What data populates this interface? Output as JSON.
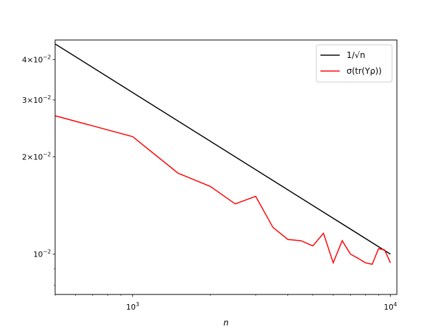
{
  "chart_data": {
    "type": "line",
    "title": "",
    "xlabel": "n",
    "ylabel": "",
    "xscale": "log",
    "yscale": "log",
    "xlim": [
      500,
      10600
    ],
    "ylim": [
      0.0075,
      0.046
    ],
    "grid": false,
    "legend_position": "top-right",
    "x_major_ticks": [
      {
        "value": 1000,
        "base": "10",
        "exp": "3"
      },
      {
        "value": 10000,
        "base": "10",
        "exp": "4"
      }
    ],
    "y_major_ticks": [
      {
        "value": 0.01,
        "base": "10",
        "exp": "−2",
        "coef": ""
      },
      {
        "value": 0.02,
        "base": "10",
        "exp": "−2",
        "coef": "2×"
      },
      {
        "value": 0.03,
        "base": "10",
        "exp": "−2",
        "coef": "3×"
      },
      {
        "value": 0.04,
        "base": "10",
        "exp": "−2",
        "coef": "4×"
      }
    ],
    "series": [
      {
        "name": "1/√n",
        "color": "#000000",
        "x": [
          500,
          1000,
          2000,
          5000,
          10000
        ],
        "y": [
          0.044721,
          0.031623,
          0.022361,
          0.014142,
          0.01
        ]
      },
      {
        "name": "σ(tr(Yρ))",
        "color": "#ff0000",
        "x": [
          500,
          1000,
          1500,
          2000,
          2500,
          3000,
          3500,
          4000,
          4500,
          5000,
          5500,
          6000,
          6500,
          7000,
          7500,
          8000,
          8500,
          9000,
          9500,
          10000
        ],
        "y": [
          0.0268,
          0.0231,
          0.0178,
          0.0162,
          0.0143,
          0.0151,
          0.0121,
          0.0111,
          0.011,
          0.0106,
          0.0116,
          0.0094,
          0.011,
          0.01,
          0.0097,
          0.0094,
          0.0093,
          0.0104,
          0.0103,
          0.0094
        ]
      }
    ]
  }
}
